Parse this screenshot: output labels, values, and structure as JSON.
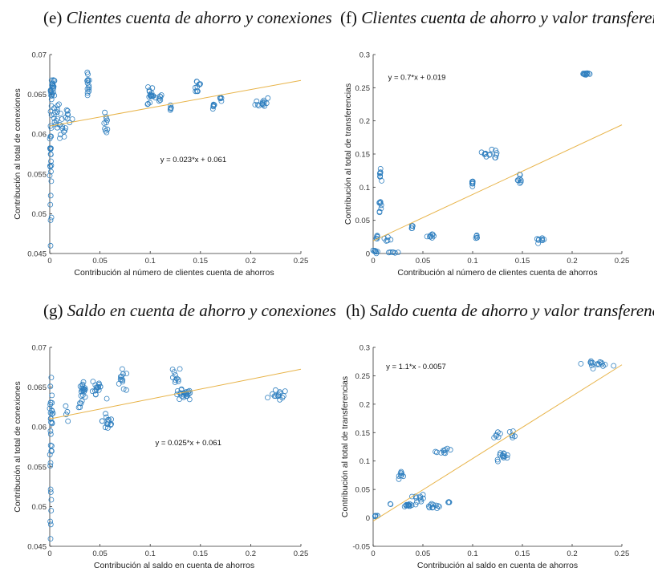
{
  "colors": {
    "marker": "#2f7fbf",
    "fit": "#e8b44a",
    "axis": "#333333"
  },
  "chart_data": [
    {
      "type": "scatter",
      "panel_label": "(e)",
      "title": "Clientes cuenta de ahorro y conexiones",
      "xlabel": "Contribución al número de clientes cuenta de ahorros",
      "ylabel": "Contribución al total de conexiones",
      "xlim": [
        0,
        0.25
      ],
      "ylim": [
        0.045,
        0.07
      ],
      "xticks": [
        0,
        0.05,
        0.1,
        0.15,
        0.2,
        0.25
      ],
      "xtick_labels": [
        "0",
        "0.05",
        "0.1",
        "0.15",
        "0.2",
        "0.25"
      ],
      "yticks": [
        0.045,
        0.05,
        0.055,
        0.06,
        0.065,
        0.07
      ],
      "ytick_labels": [
        "0.045",
        "0.05",
        "0.055",
        "0.06",
        "0.065",
        "0.07"
      ],
      "fit": {
        "slope": 0.023,
        "intercept": 0.061,
        "label": "y = 0.023*x + 0.061",
        "label_at": [
          0.11,
          0.0565
        ]
      },
      "clusters": [
        {
          "x": 0.001,
          "y": 0.057,
          "sx": 0.0008,
          "sy": 0.006,
          "n": 26
        },
        {
          "x": 0.003,
          "y": 0.0655,
          "sx": 0.0015,
          "sy": 0.0012,
          "n": 22
        },
        {
          "x": 0.006,
          "y": 0.0625,
          "sx": 0.003,
          "sy": 0.0012,
          "n": 14
        },
        {
          "x": 0.012,
          "y": 0.0605,
          "sx": 0.003,
          "sy": 0.0012,
          "n": 12
        },
        {
          "x": 0.018,
          "y": 0.0622,
          "sx": 0.003,
          "sy": 0.0008,
          "n": 8
        },
        {
          "x": 0.038,
          "y": 0.066,
          "sx": 0.0012,
          "sy": 0.0013,
          "n": 14
        },
        {
          "x": 0.056,
          "y": 0.0612,
          "sx": 0.0015,
          "sy": 0.001,
          "n": 10
        },
        {
          "x": 0.1,
          "y": 0.065,
          "sx": 0.002,
          "sy": 0.0012,
          "n": 16
        },
        {
          "x": 0.108,
          "y": 0.0645,
          "sx": 0.003,
          "sy": 0.0004,
          "n": 8
        },
        {
          "x": 0.12,
          "y": 0.0635,
          "sx": 0.001,
          "sy": 0.0004,
          "n": 6
        },
        {
          "x": 0.147,
          "y": 0.066,
          "sx": 0.003,
          "sy": 0.0008,
          "n": 10
        },
        {
          "x": 0.163,
          "y": 0.0636,
          "sx": 0.001,
          "sy": 0.0005,
          "n": 6
        },
        {
          "x": 0.171,
          "y": 0.0644,
          "sx": 0.002,
          "sy": 0.0003,
          "n": 5
        },
        {
          "x": 0.212,
          "y": 0.064,
          "sx": 0.005,
          "sy": 0.0005,
          "n": 14
        }
      ]
    },
    {
      "type": "scatter",
      "panel_label": "(f)",
      "title": "Clientes cuenta de ahorro y valor transferencias",
      "xlabel": "Contribución al número de clientes cuenta de ahorros",
      "ylabel": "Contribución al total de transferencias",
      "xlim": [
        0,
        0.25
      ],
      "ylim": [
        0,
        0.3
      ],
      "xticks": [
        0,
        0.05,
        0.1,
        0.15,
        0.2,
        0.25
      ],
      "xtick_labels": [
        "0",
        "0.05",
        "0.1",
        "0.15",
        "0.2",
        "0.25"
      ],
      "yticks": [
        0,
        0.05,
        0.1,
        0.15,
        0.2,
        0.25,
        0.3
      ],
      "ytick_labels": [
        "0",
        "0.05",
        "0.1",
        "0.15",
        "0.2",
        "0.25",
        "0.3"
      ],
      "fit": {
        "slope": 0.7,
        "intercept": 0.019,
        "label": "y = 0.7*x + 0.019",
        "label_at": [
          0.015,
          0.262
        ]
      },
      "clusters": [
        {
          "x": 0.002,
          "y": 0.003,
          "sx": 0.002,
          "sy": 0.002,
          "n": 8
        },
        {
          "x": 0.004,
          "y": 0.025,
          "sx": 0.0008,
          "sy": 0.003,
          "n": 5
        },
        {
          "x": 0.007,
          "y": 0.075,
          "sx": 0.0008,
          "sy": 0.008,
          "n": 8
        },
        {
          "x": 0.007,
          "y": 0.118,
          "sx": 0.0008,
          "sy": 0.006,
          "n": 8
        },
        {
          "x": 0.015,
          "y": 0.02,
          "sx": 0.003,
          "sy": 0.003,
          "n": 5
        },
        {
          "x": 0.02,
          "y": 0.002,
          "sx": 0.004,
          "sy": 0.001,
          "n": 6
        },
        {
          "x": 0.039,
          "y": 0.04,
          "sx": 0.001,
          "sy": 0.003,
          "n": 5
        },
        {
          "x": 0.057,
          "y": 0.027,
          "sx": 0.002,
          "sy": 0.003,
          "n": 8
        },
        {
          "x": 0.1,
          "y": 0.105,
          "sx": 0.001,
          "sy": 0.006,
          "n": 8
        },
        {
          "x": 0.104,
          "y": 0.025,
          "sx": 0.0015,
          "sy": 0.002,
          "n": 5
        },
        {
          "x": 0.115,
          "y": 0.152,
          "sx": 0.003,
          "sy": 0.004,
          "n": 8
        },
        {
          "x": 0.123,
          "y": 0.15,
          "sx": 0.001,
          "sy": 0.008,
          "n": 5
        },
        {
          "x": 0.148,
          "y": 0.112,
          "sx": 0.002,
          "sy": 0.006,
          "n": 8
        },
        {
          "x": 0.168,
          "y": 0.02,
          "sx": 0.003,
          "sy": 0.002,
          "n": 8
        },
        {
          "x": 0.214,
          "y": 0.271,
          "sx": 0.004,
          "sy": 0.002,
          "n": 12
        }
      ]
    },
    {
      "type": "scatter",
      "panel_label": "(g)",
      "title": "Saldo en cuenta de ahorro y conexiones",
      "xlabel": "Contribución al saldo en cuenta de ahorros",
      "ylabel": "Contribución al total de conexiones",
      "xlim": [
        0,
        0.25
      ],
      "ylim": [
        0.045,
        0.07
      ],
      "xticks": [
        0,
        0.05,
        0.1,
        0.15,
        0.2,
        0.25
      ],
      "xtick_labels": [
        "0",
        "0.05",
        "0.1",
        "0.15",
        "0.2",
        "0.25"
      ],
      "yticks": [
        0.045,
        0.05,
        0.055,
        0.06,
        0.065,
        0.07
      ],
      "ytick_labels": [
        "0.045",
        "0.05",
        "0.055",
        "0.06",
        "0.065",
        "0.07"
      ],
      "fit": {
        "slope": 0.025,
        "intercept": 0.061,
        "label": "y = 0.025*x + 0.061",
        "label_at": [
          0.105,
          0.0577
        ]
      },
      "clusters": [
        {
          "x": 0.001,
          "y": 0.057,
          "sx": 0.0008,
          "sy": 0.006,
          "n": 24
        },
        {
          "x": 0.002,
          "y": 0.062,
          "sx": 0.001,
          "sy": 0.0012,
          "n": 10
        },
        {
          "x": 0.015,
          "y": 0.0618,
          "sx": 0.002,
          "sy": 0.0006,
          "n": 4
        },
        {
          "x": 0.033,
          "y": 0.064,
          "sx": 0.003,
          "sy": 0.0012,
          "n": 22
        },
        {
          "x": 0.047,
          "y": 0.065,
          "sx": 0.004,
          "sy": 0.0012,
          "n": 16
        },
        {
          "x": 0.058,
          "y": 0.0608,
          "sx": 0.004,
          "sy": 0.0012,
          "n": 16
        },
        {
          "x": 0.073,
          "y": 0.0658,
          "sx": 0.005,
          "sy": 0.001,
          "n": 12
        },
        {
          "x": 0.125,
          "y": 0.0662,
          "sx": 0.004,
          "sy": 0.001,
          "n": 10
        },
        {
          "x": 0.133,
          "y": 0.064,
          "sx": 0.006,
          "sy": 0.0005,
          "n": 24
        },
        {
          "x": 0.228,
          "y": 0.064,
          "sx": 0.006,
          "sy": 0.0005,
          "n": 14
        }
      ]
    },
    {
      "type": "scatter",
      "panel_label": "(h)",
      "title": "Saldo cuenta de ahorro y valor transferencias",
      "xlabel": "Contribución al saldo en cuenta de ahorros",
      "ylabel": "Contribución al total de transferencias",
      "xlim": [
        0,
        0.25
      ],
      "ylim": [
        -0.05,
        0.3
      ],
      "xticks": [
        0,
        0.05,
        0.1,
        0.15,
        0.2,
        0.25
      ],
      "xtick_labels": [
        "0",
        "0.05",
        "0.1",
        "0.15",
        "0.2",
        "0.25"
      ],
      "yticks": [
        -0.05,
        0,
        0.05,
        0.1,
        0.15,
        0.2,
        0.25,
        0.3
      ],
      "ytick_labels": [
        "-0.05",
        "0",
        "0.05",
        "0.1",
        "0.15",
        "0.2",
        "0.25",
        "0.3"
      ],
      "fit": {
        "slope": 1.1,
        "intercept": -0.0057,
        "label": "y = 1.1*x - 0.0057",
        "label_at": [
          0.013,
          0.262
        ]
      },
      "clusters": [
        {
          "x": 0.003,
          "y": 0.003,
          "sx": 0.002,
          "sy": 0.001,
          "n": 6
        },
        {
          "x": 0.017,
          "y": 0.023,
          "sx": 0.001,
          "sy": 0.001,
          "n": 2
        },
        {
          "x": 0.029,
          "y": 0.077,
          "sx": 0.002,
          "sy": 0.005,
          "n": 8
        },
        {
          "x": 0.036,
          "y": 0.022,
          "sx": 0.004,
          "sy": 0.003,
          "n": 14
        },
        {
          "x": 0.047,
          "y": 0.034,
          "sx": 0.004,
          "sy": 0.005,
          "n": 10
        },
        {
          "x": 0.06,
          "y": 0.022,
          "sx": 0.006,
          "sy": 0.004,
          "n": 12
        },
        {
          "x": 0.072,
          "y": 0.117,
          "sx": 0.006,
          "sy": 0.003,
          "n": 10
        },
        {
          "x": 0.077,
          "y": 0.028,
          "sx": 0.002,
          "sy": 0.002,
          "n": 3
        },
        {
          "x": 0.125,
          "y": 0.147,
          "sx": 0.003,
          "sy": 0.004,
          "n": 6
        },
        {
          "x": 0.13,
          "y": 0.108,
          "sx": 0.005,
          "sy": 0.006,
          "n": 14
        },
        {
          "x": 0.14,
          "y": 0.148,
          "sx": 0.003,
          "sy": 0.004,
          "n": 6
        },
        {
          "x": 0.225,
          "y": 0.271,
          "sx": 0.01,
          "sy": 0.003,
          "n": 16
        }
      ]
    }
  ]
}
